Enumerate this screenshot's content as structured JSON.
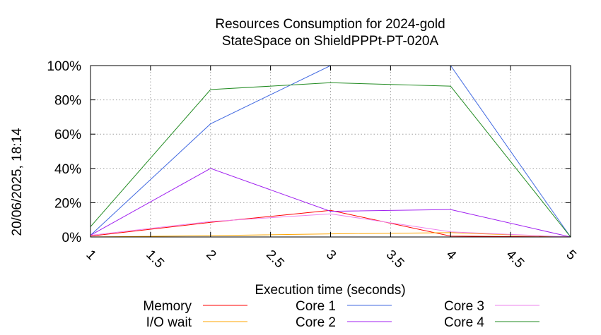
{
  "chart_data": {
    "type": "line",
    "title": [
      "Resources Consumption for 2024-gold",
      "StateSpace on ShieldPPPt-PT-020A"
    ],
    "xlabel": "Execution time (seconds)",
    "ylabel": "",
    "timestamp": "20/06/2025, 18:14",
    "xlim": [
      1,
      5
    ],
    "ylim": [
      0,
      100
    ],
    "x_ticks": [
      "1",
      "1.5",
      "2",
      "2.5",
      "3",
      "3.5",
      "4",
      "4.5",
      "5"
    ],
    "x_tick_values": [
      1,
      1.5,
      2,
      2.5,
      3,
      3.5,
      4,
      4.5,
      5
    ],
    "y_ticks": [
      "0%",
      "20%",
      "40%",
      "60%",
      "80%",
      "100%"
    ],
    "y_tick_values": [
      0,
      20,
      40,
      60,
      80,
      100
    ],
    "grid": true,
    "legend_position": "bottom",
    "series": [
      {
        "name": "Memory",
        "color": "#ff0000",
        "x": [
          1,
          2,
          3,
          4,
          5
        ],
        "values": [
          0.5,
          8.5,
          15.5,
          0.5,
          0
        ]
      },
      {
        "name": "I/O wait",
        "color": "#ffa500",
        "x": [
          1,
          2,
          3,
          4,
          5
        ],
        "values": [
          0,
          0.8,
          1.8,
          2.5,
          0
        ]
      },
      {
        "name": "Core 1",
        "color": "#4169e1",
        "x": [
          1,
          2,
          3,
          4,
          5
        ],
        "values": [
          1,
          66,
          100,
          100,
          0
        ]
      },
      {
        "name": "Core 2",
        "color": "#a020f0",
        "x": [
          1,
          2,
          3,
          4,
          5
        ],
        "values": [
          1,
          40,
          15,
          16,
          0
        ]
      },
      {
        "name": "Core 3",
        "color": "#ee82ee",
        "x": [
          1,
          2,
          3,
          4,
          5
        ],
        "values": [
          1,
          9,
          13.5,
          3,
          0
        ]
      },
      {
        "name": "Core 4",
        "color": "#228b22",
        "x": [
          1,
          2,
          3,
          4,
          5
        ],
        "values": [
          6,
          86,
          90,
          88,
          0
        ]
      }
    ]
  }
}
